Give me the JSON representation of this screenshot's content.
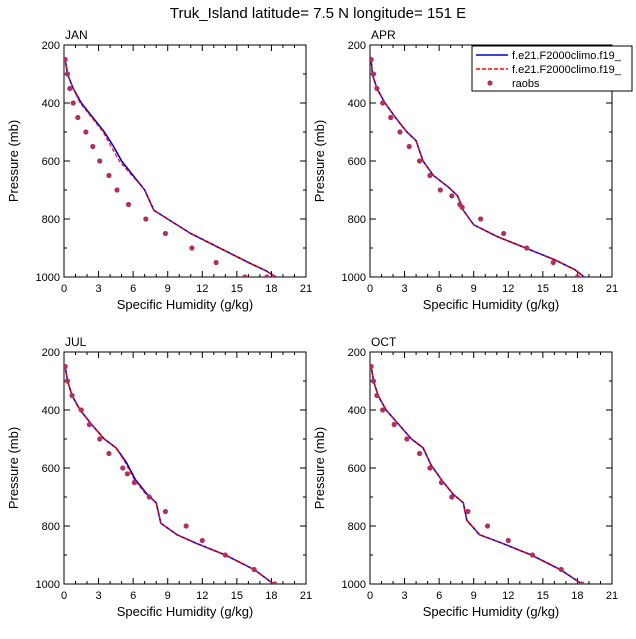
{
  "title": "Truk_Island  latitude= 7.5 N longitude= 151 E",
  "colors": {
    "model1": "#0000cc",
    "model2": "#ff0000",
    "obs": "#b03060"
  },
  "legend": {
    "placement": "top-right",
    "entries": [
      {
        "label": "f.e21.F2000climo.f19_",
        "style": "solid-line",
        "color": "#0000cc"
      },
      {
        "label": "f.e21.F2000climo.f19_",
        "style": "dashed-line",
        "color": "#ff0000"
      },
      {
        "label": "raobs",
        "style": "dot",
        "color": "#b03060"
      }
    ]
  },
  "chart_data": [
    {
      "type": "line",
      "panel": "JAN",
      "xlabel": "Specific Humidity (g/kg)",
      "ylabel": "Pressure (mb)",
      "xlim": [
        0,
        21
      ],
      "ylim": [
        1000,
        200
      ],
      "y_reversed": true,
      "xticks": [
        0,
        3,
        6,
        9,
        12,
        15,
        18,
        21
      ],
      "yticks": [
        200,
        400,
        600,
        800,
        1000
      ],
      "series": [
        {
          "name": "f.e21.F2000climo.f19_",
          "style": "solid",
          "x": [
            0.1,
            0.3,
            0.8,
            1.5,
            2.5,
            3.5,
            4.3,
            5.0,
            6.0,
            7.0,
            7.8,
            9.0,
            11.0,
            13.5,
            16.0,
            17.6,
            18.4
          ],
          "y": [
            250,
            300,
            350,
            400,
            450,
            500,
            550,
            600,
            650,
            700,
            770,
            800,
            850,
            900,
            950,
            980,
            1000
          ]
        },
        {
          "name": "f.e21.F2000climo.f19_",
          "style": "dashed",
          "x": [
            0.1,
            0.3,
            0.8,
            1.4,
            2.4,
            3.4,
            4.1,
            4.8,
            5.9,
            7.0,
            7.8,
            9.0,
            11.0,
            13.5,
            16.0,
            17.6,
            18.4
          ],
          "y": [
            250,
            300,
            350,
            400,
            450,
            500,
            550,
            600,
            650,
            700,
            770,
            800,
            850,
            900,
            950,
            980,
            1000
          ]
        },
        {
          "name": "raobs",
          "style": "dots",
          "x": [
            0.1,
            0.3,
            0.5,
            0.8,
            1.2,
            1.9,
            2.5,
            3.1,
            3.9,
            4.6,
            5.6,
            7.1,
            8.8,
            11.1,
            13.2,
            15.7,
            17.6
          ],
          "y": [
            250,
            300,
            350,
            400,
            450,
            500,
            550,
            600,
            650,
            700,
            750,
            800,
            850,
            900,
            950,
            1000,
            1000
          ]
        }
      ]
    },
    {
      "type": "line",
      "panel": "APR",
      "xlabel": "Specific Humidity (g/kg)",
      "ylabel": "Pressure (mb)",
      "xlim": [
        0,
        21
      ],
      "ylim": [
        1000,
        200
      ],
      "y_reversed": true,
      "xticks": [
        0,
        3,
        6,
        9,
        12,
        15,
        18,
        21
      ],
      "yticks": [
        200,
        400,
        600,
        800,
        1000
      ],
      "series": [
        {
          "name": "f.e21.F2000climo.f19_",
          "style": "solid",
          "x": [
            0.1,
            0.2,
            0.6,
            1.3,
            2.2,
            3.2,
            4.0,
            4.6,
            5.5,
            6.8,
            7.6,
            8.1,
            9.0,
            11.0,
            13.5,
            16.0,
            17.8,
            18.6
          ],
          "y": [
            250,
            300,
            350,
            400,
            450,
            500,
            530,
            600,
            650,
            690,
            720,
            770,
            820,
            860,
            900,
            940,
            975,
            1000
          ]
        },
        {
          "name": "f.e21.F2000climo.f19_",
          "style": "dashed",
          "x": [
            0.1,
            0.2,
            0.6,
            1.3,
            2.2,
            3.2,
            4.0,
            4.6,
            5.5,
            6.8,
            7.6,
            8.1,
            9.0,
            11.0,
            13.5,
            16.0,
            17.8,
            18.6
          ],
          "y": [
            250,
            300,
            350,
            400,
            450,
            500,
            530,
            600,
            650,
            690,
            720,
            770,
            820,
            860,
            900,
            940,
            975,
            1000
          ]
        },
        {
          "name": "raobs",
          "style": "dots",
          "x": [
            0.1,
            0.3,
            0.6,
            1.1,
            1.8,
            2.6,
            3.4,
            4.3,
            5.2,
            6.1,
            7.1,
            7.8,
            8.0,
            9.6,
            11.6,
            13.6,
            15.9,
            18.0
          ],
          "y": [
            250,
            300,
            350,
            400,
            450,
            500,
            550,
            600,
            650,
            700,
            720,
            750,
            760,
            800,
            850,
            900,
            950,
            1000
          ]
        }
      ]
    },
    {
      "type": "line",
      "panel": "JUL",
      "xlabel": "Specific Humidity (g/kg)",
      "ylabel": "Pressure (mb)",
      "xlim": [
        0,
        21
      ],
      "ylim": [
        1000,
        200
      ],
      "y_reversed": true,
      "xticks": [
        0,
        3,
        6,
        9,
        12,
        15,
        18,
        21
      ],
      "yticks": [
        200,
        400,
        600,
        800,
        1000
      ],
      "series": [
        {
          "name": "f.e21.F2000climo.f19_",
          "style": "solid",
          "x": [
            0.1,
            0.3,
            0.7,
            1.4,
            2.4,
            3.5,
            4.5,
            5.4,
            6.2,
            7.2,
            8.0,
            8.4,
            9.8,
            11.5,
            14.0,
            16.5,
            18.2
          ],
          "y": [
            250,
            300,
            350,
            400,
            450,
            500,
            530,
            580,
            640,
            690,
            720,
            790,
            830,
            860,
            900,
            950,
            1000
          ]
        },
        {
          "name": "f.e21.F2000climo.f19_",
          "style": "dashed",
          "x": [
            0.1,
            0.3,
            0.7,
            1.4,
            2.4,
            3.5,
            4.5,
            5.3,
            6.1,
            7.1,
            8.0,
            8.4,
            9.8,
            11.5,
            14.0,
            16.5,
            18.2
          ],
          "y": [
            250,
            300,
            350,
            400,
            450,
            500,
            530,
            580,
            640,
            690,
            720,
            790,
            830,
            860,
            900,
            950,
            1000
          ]
        },
        {
          "name": "raobs",
          "style": "dots",
          "x": [
            0.1,
            0.3,
            0.7,
            1.5,
            2.2,
            3.1,
            3.9,
            5.1,
            5.5,
            6.1,
            7.4,
            8.8,
            10.6,
            12.0,
            14.0,
            16.5,
            18.3
          ],
          "y": [
            250,
            300,
            350,
            400,
            450,
            500,
            550,
            600,
            620,
            650,
            700,
            750,
            800,
            850,
            900,
            950,
            1000
          ]
        }
      ]
    },
    {
      "type": "line",
      "panel": "OCT",
      "xlabel": "Specific Humidity (g/kg)",
      "ylabel": "Pressure (mb)",
      "xlim": [
        0,
        21
      ],
      "ylim": [
        1000,
        200
      ],
      "y_reversed": true,
      "xticks": [
        0,
        3,
        6,
        9,
        12,
        15,
        18,
        21
      ],
      "yticks": [
        200,
        400,
        600,
        800,
        1000
      ],
      "series": [
        {
          "name": "f.e21.F2000climo.f19_",
          "style": "solid",
          "x": [
            0.1,
            0.3,
            0.7,
            1.4,
            2.5,
            3.6,
            4.6,
            5.3,
            6.2,
            7.2,
            8.1,
            8.4,
            9.5,
            11.5,
            14.0,
            16.5,
            18.4
          ],
          "y": [
            250,
            300,
            350,
            400,
            450,
            500,
            530,
            590,
            640,
            690,
            720,
            780,
            830,
            860,
            900,
            950,
            1000
          ]
        },
        {
          "name": "f.e21.F2000climo.f19_",
          "style": "dashed",
          "x": [
            0.1,
            0.3,
            0.7,
            1.4,
            2.5,
            3.6,
            4.6,
            5.3,
            6.2,
            7.2,
            8.1,
            8.4,
            9.5,
            11.5,
            14.0,
            16.5,
            18.4
          ],
          "y": [
            250,
            300,
            350,
            400,
            450,
            500,
            530,
            590,
            640,
            690,
            720,
            780,
            830,
            860,
            900,
            950,
            1000
          ]
        },
        {
          "name": "raobs",
          "style": "dots",
          "x": [
            0.1,
            0.3,
            0.6,
            1.1,
            2.1,
            3.2,
            4.3,
            5.2,
            6.2,
            7.1,
            8.5,
            10.2,
            12.0,
            14.1,
            16.6,
            18.4
          ],
          "y": [
            250,
            300,
            350,
            400,
            450,
            500,
            550,
            600,
            650,
            700,
            750,
            800,
            850,
            900,
            950,
            1000
          ]
        }
      ]
    }
  ]
}
